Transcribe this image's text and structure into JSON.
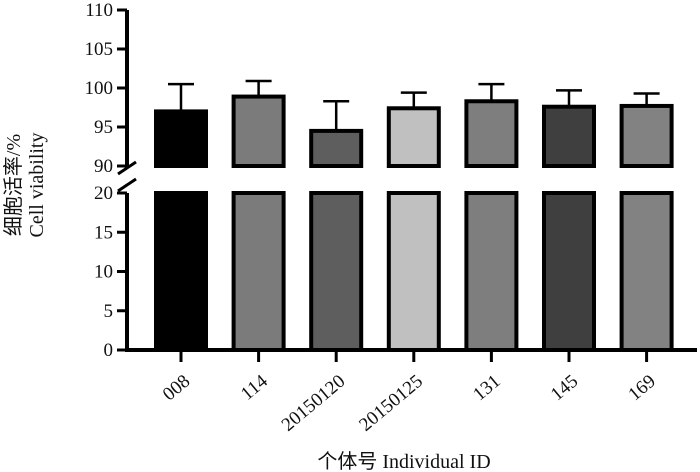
{
  "chart_data": {
    "type": "bar",
    "categories": [
      "008",
      "114",
      "20150120",
      "20150125",
      "131",
      "145",
      "169"
    ],
    "values": [
      97.0,
      98.9,
      94.5,
      97.4,
      98.3,
      97.6,
      97.7
    ],
    "errors_upper": [
      3.5,
      2.0,
      3.8,
      2.0,
      2.2,
      2.1,
      1.6
    ],
    "bar_colors": [
      "#000000",
      "#7b7b7b",
      "#5e5e5e",
      "#c0c0c0",
      "#7e7e7e",
      "#3f3f3f",
      "#828282"
    ],
    "xlabel": "个体号 Individual ID",
    "ylabel_cn": "细胞活率/%",
    "ylabel_en": "Cell viability",
    "y_axis_break": {
      "lower_segment": {
        "ylim": [
          0,
          20
        ],
        "ticks": [
          "0",
          "5",
          "10",
          "15",
          "20"
        ]
      },
      "upper_segment": {
        "ylim": [
          90,
          110
        ],
        "ticks": [
          "90",
          "95",
          "100",
          "105",
          "110"
        ]
      }
    },
    "grid": false,
    "legend": "none"
  }
}
